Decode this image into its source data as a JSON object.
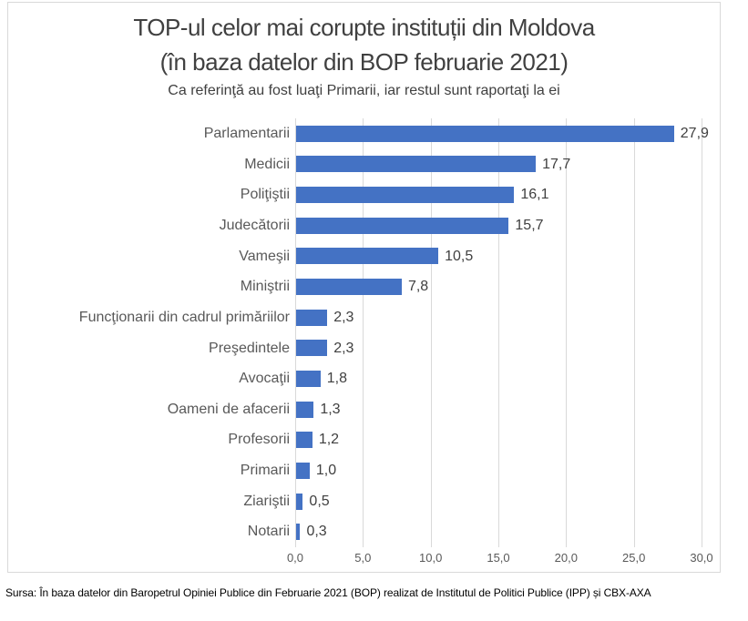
{
  "chart_data": {
    "type": "bar",
    "orientation": "horizontal",
    "title": "TOP-ul celor mai corupte instituții din Moldova (în baza datelor din BOP februarie 2021)",
    "title_line1": "TOP-ul celor mai corupte instituții din Moldova",
    "title_line2": "(în baza datelor din BOP februarie 2021)",
    "subtitle": "Ca referinţă au fost luaţi Primarii, iar restul sunt raportaţi la ei",
    "categories": [
      "Parlamentarii",
      "Medicii",
      "Poliţiştii",
      "Judecătorii",
      "Vameşii",
      "Miniştrii",
      "Funcţionarii din cadrul primăriilor",
      "Preşedintele",
      "Avocaţii",
      "Oameni de afacerii",
      "Profesorii",
      "Primarii",
      "Ziariştii",
      "Notarii"
    ],
    "values": [
      27.9,
      17.7,
      16.1,
      15.7,
      10.5,
      7.8,
      2.3,
      2.3,
      1.8,
      1.3,
      1.2,
      1.0,
      0.5,
      0.3
    ],
    "value_labels": [
      "27,9",
      "17,7",
      "16,1",
      "15,7",
      "10,5",
      "7,8",
      "2,3",
      "2,3",
      "1,8",
      "1,3",
      "1,2",
      "1,0",
      "0,5",
      "0,3"
    ],
    "x_ticks": [
      "0,0",
      "5,0",
      "10,0",
      "15,0",
      "20,0",
      "25,0",
      "30,0"
    ],
    "xlim": [
      0,
      30
    ],
    "xlabel": "",
    "ylabel": "",
    "grid": true,
    "legend": false,
    "bar_color": "#4472c4",
    "gridline_color": "#d9d9d9",
    "title_color": "#404040",
    "category_label_color": "#595959",
    "value_label_color": "#404040"
  },
  "footer": {
    "source": "Sursa: În baza datelor din Baropetrul Opiniei Publice din Februarie 2021 (BOP) realizat de Institutul de Politici Publice (IPP) și CBX-AXA"
  }
}
